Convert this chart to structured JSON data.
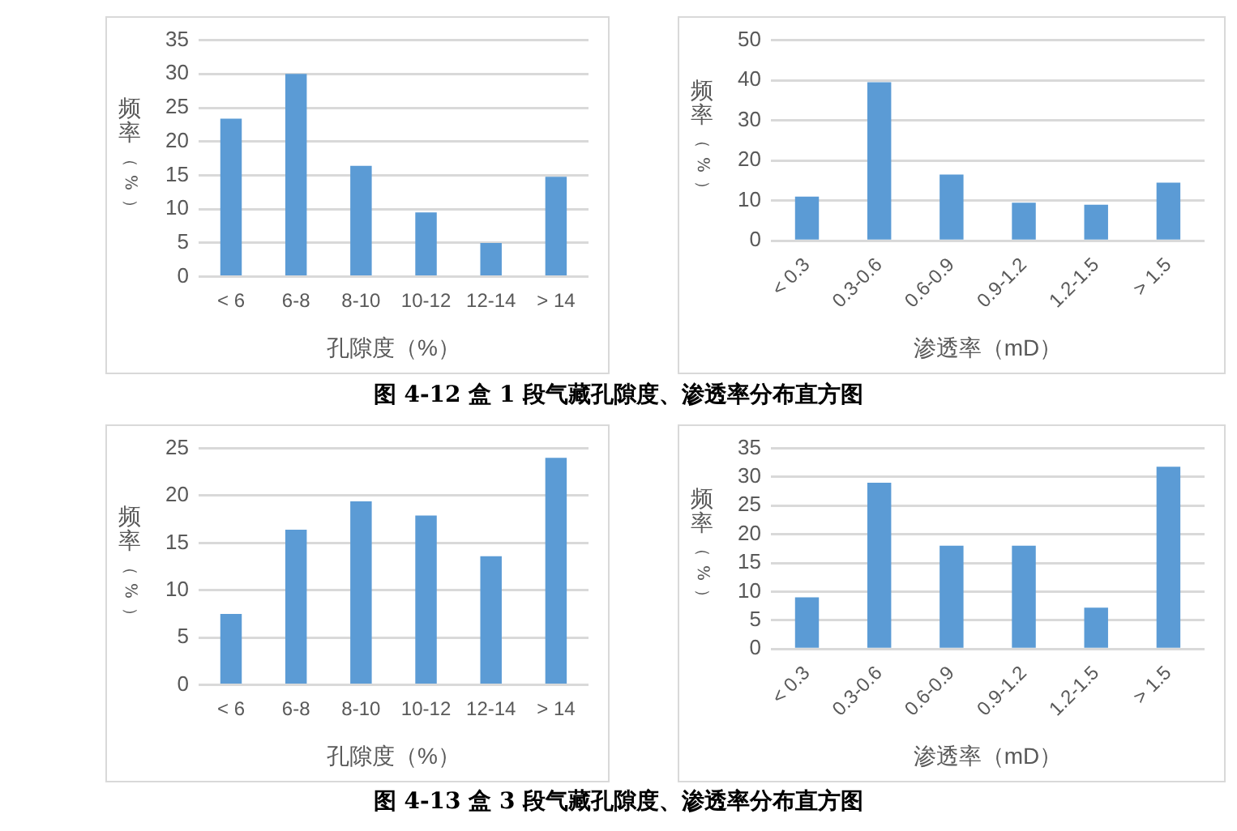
{
  "chart_data": [
    {
      "type": "bar",
      "xlabel": "孔隙度（%）",
      "ylabel": "频率（%）",
      "categories": [
        "< 6",
        "6-8",
        "8-10",
        "10-12",
        "12-14",
        "> 14"
      ],
      "values": [
        23.4,
        30,
        16.4,
        9.5,
        5,
        14.8
      ],
      "color": "#5b9bd5",
      "ylim": [
        0,
        35
      ],
      "yticks": [
        0,
        5,
        10,
        15,
        20,
        25,
        30,
        35
      ],
      "grid": "y",
      "annotations": [
        "图 4-12 盒 1 段气藏孔隙度、渗透率分布直方图"
      ]
    },
    {
      "type": "bar",
      "xlabel": "渗透率（mD）",
      "ylabel": "频率（%）",
      "categories": [
        "< 0.3",
        "0.3-0.6",
        "0.6-0.9",
        "0.9-1.2",
        "1.2-1.5",
        "> 1.5"
      ],
      "values": [
        11,
        39.5,
        16.5,
        9.5,
        9,
        14.5
      ],
      "color": "#5b9bd5",
      "ylim": [
        0,
        50
      ],
      "yticks": [
        0,
        10,
        20,
        30,
        40,
        50
      ],
      "grid": "y"
    },
    {
      "type": "bar",
      "xlabel": "孔隙度（%）",
      "ylabel": "频率（%）",
      "categories": [
        "< 6",
        "6-8",
        "8-10",
        "10-12",
        "12-14",
        "> 14"
      ],
      "values": [
        7.5,
        16.4,
        19.4,
        17.9,
        13.6,
        24
      ],
      "color": "#5b9bd5",
      "ylim": [
        0,
        25
      ],
      "yticks": [
        0,
        5,
        10,
        15,
        20,
        25
      ],
      "grid": "y",
      "annotations": [
        "图 4-13 盒 3 段气藏孔隙度、渗透率分布直方图"
      ]
    },
    {
      "type": "bar",
      "xlabel": "渗透率（mD）",
      "ylabel": "频率（%）",
      "categories": [
        "< 0.3",
        "0.3-0.6",
        "0.6-0.9",
        "0.9-1.2",
        "1.2-1.5",
        "> 1.5"
      ],
      "values": [
        9,
        29,
        18,
        18,
        7.2,
        31.8
      ],
      "color": "#5b9bd5",
      "ylim": [
        0,
        35
      ],
      "yticks": [
        0,
        5,
        10,
        15,
        20,
        25,
        30,
        35
      ],
      "grid": "y"
    }
  ]
}
